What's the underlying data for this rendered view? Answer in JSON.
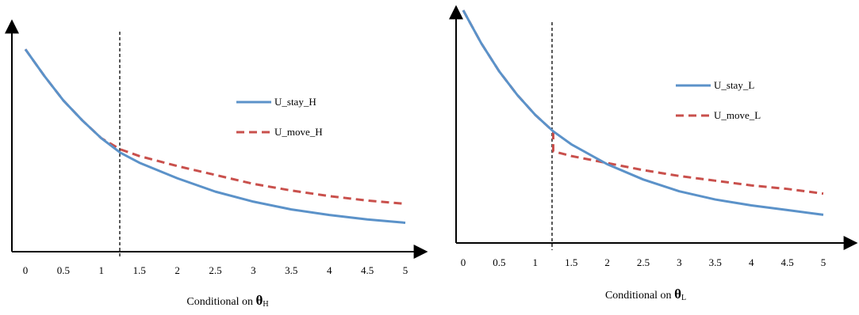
{
  "chart_data": [
    {
      "type": "line",
      "xlabel": {
        "prefix": "Conditional on ",
        "symbol": "θ",
        "subscript": "H"
      },
      "ylabel": "",
      "x_ticks": [
        "0",
        "0.5",
        "1",
        "1.5",
        "2",
        "2.5",
        "3",
        "3.5",
        "4",
        "4.5",
        "5"
      ],
      "xlim": [
        0,
        5
      ],
      "ylim": [
        0,
        1
      ],
      "threshold_x": 1.25,
      "grid": false,
      "legend_position": "right",
      "colors": {
        "stay": "#5B92C9",
        "move": "#C9504C",
        "threshold": "#000000"
      },
      "series": [
        {
          "name": "U_stay_H",
          "style": "solid",
          "x": [
            0,
            0.25,
            0.5,
            0.75,
            1,
            1.25,
            1.5,
            2,
            2.5,
            3,
            3.5,
            4,
            4.5,
            5
          ],
          "y": [
            0.91,
            0.79,
            0.68,
            0.59,
            0.51,
            0.445,
            0.4,
            0.33,
            0.27,
            0.225,
            0.19,
            0.165,
            0.145,
            0.13
          ]
        },
        {
          "name": "U_move_H",
          "style": "dashed",
          "x": [
            0,
            0.25,
            0.5,
            0.75,
            1,
            1.25,
            1.5,
            2,
            2.5,
            3,
            3.5,
            4,
            4.5,
            5
          ],
          "y": [
            0.91,
            0.79,
            0.68,
            0.59,
            0.51,
            0.46,
            0.43,
            0.385,
            0.345,
            0.305,
            0.275,
            0.25,
            0.23,
            0.215
          ]
        }
      ]
    },
    {
      "type": "line",
      "xlabel": {
        "prefix": "Conditional on ",
        "symbol": "θ",
        "subscript": "L"
      },
      "ylabel": "",
      "x_ticks": [
        "0",
        "0.5",
        "1",
        "1.5",
        "2",
        "2.5",
        "3",
        "3.5",
        "4",
        "4.5",
        "5"
      ],
      "xlim": [
        0,
        5
      ],
      "ylim": [
        0,
        1
      ],
      "threshold_x": 1.25,
      "grid": false,
      "legend_position": "right",
      "colors": {
        "stay": "#5B92C9",
        "move": "#C9504C",
        "threshold": "#000000"
      },
      "series": [
        {
          "name": "U_stay_L",
          "style": "solid",
          "x": [
            0,
            0.25,
            0.5,
            0.75,
            1,
            1.25,
            1.5,
            2,
            2.5,
            3,
            3.5,
            4,
            4.5,
            5
          ],
          "y": [
            0.99,
            0.85,
            0.73,
            0.63,
            0.545,
            0.475,
            0.42,
            0.335,
            0.27,
            0.22,
            0.185,
            0.16,
            0.14,
            0.12
          ]
        },
        {
          "name": "U_move_L",
          "style": "dashed",
          "x": [
            0,
            0.25,
            0.5,
            0.75,
            1,
            1.25,
            1.25,
            1.5,
            2,
            2.5,
            3,
            3.5,
            4,
            4.5,
            5
          ],
          "y": [
            0.99,
            0.85,
            0.73,
            0.63,
            0.545,
            0.475,
            0.39,
            0.37,
            0.34,
            0.31,
            0.285,
            0.265,
            0.245,
            0.23,
            0.21
          ]
        }
      ]
    }
  ]
}
